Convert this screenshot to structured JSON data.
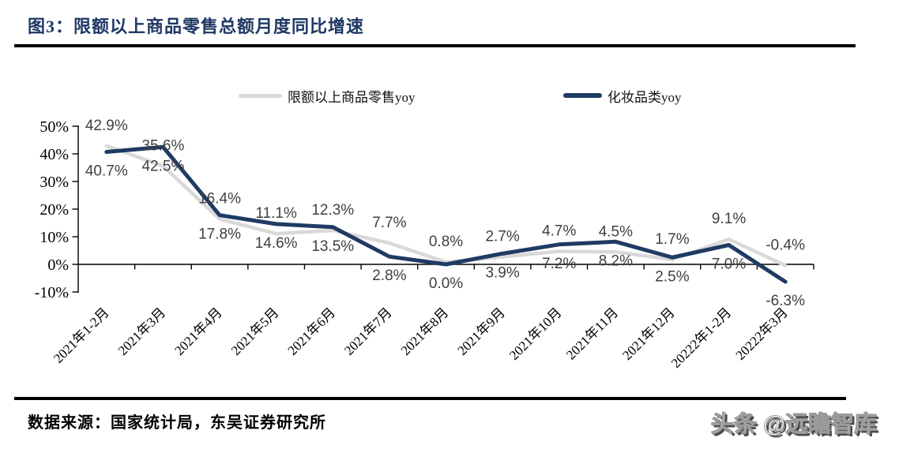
{
  "header": {
    "title": "图3：限额以上商品零售总额月度同比增速",
    "title_color": "#1f3864"
  },
  "chart_data": {
    "type": "line",
    "title": "图3：限额以上商品零售总额月度同比增速",
    "categories": [
      "2021年1-2月",
      "2021年3月",
      "2021年4月",
      "2021年5月",
      "2021年6月",
      "2021年7月",
      "2021年8月",
      "2021年9月",
      "2021年10月",
      "2021年11月",
      "2021年12月",
      "20222年1-2月",
      "20222年3月"
    ],
    "series": [
      {
        "name": "限额以上商品零售yoy",
        "color": "#d9d9d9",
        "values": [
          42.9,
          35.6,
          16.4,
          11.1,
          12.3,
          7.7,
          0.8,
          2.7,
          4.7,
          4.5,
          1.7,
          9.1,
          -0.4
        ]
      },
      {
        "name": "化妆品类yoy",
        "color": "#1f3b64",
        "values": [
          40.7,
          42.5,
          17.8,
          14.6,
          13.5,
          2.8,
          0.0,
          3.9,
          7.2,
          8.2,
          2.5,
          7.0,
          -6.3
        ]
      }
    ],
    "ylabel": "",
    "xlabel": "",
    "ylim": [
      -10,
      50
    ],
    "y_tick_step": 10,
    "y_tick_labels": [
      "50%",
      "40%",
      "30%",
      "20%",
      "10%",
      "0%",
      "-10%"
    ],
    "grid": false,
    "legend_position": "top",
    "data_labels": true,
    "label_color": "#404040",
    "axis_color": "#000000"
  },
  "footer": {
    "source": "数据来源：国家统计局，东吴证券研究所",
    "watermark": "头条 @远瞻智库"
  }
}
